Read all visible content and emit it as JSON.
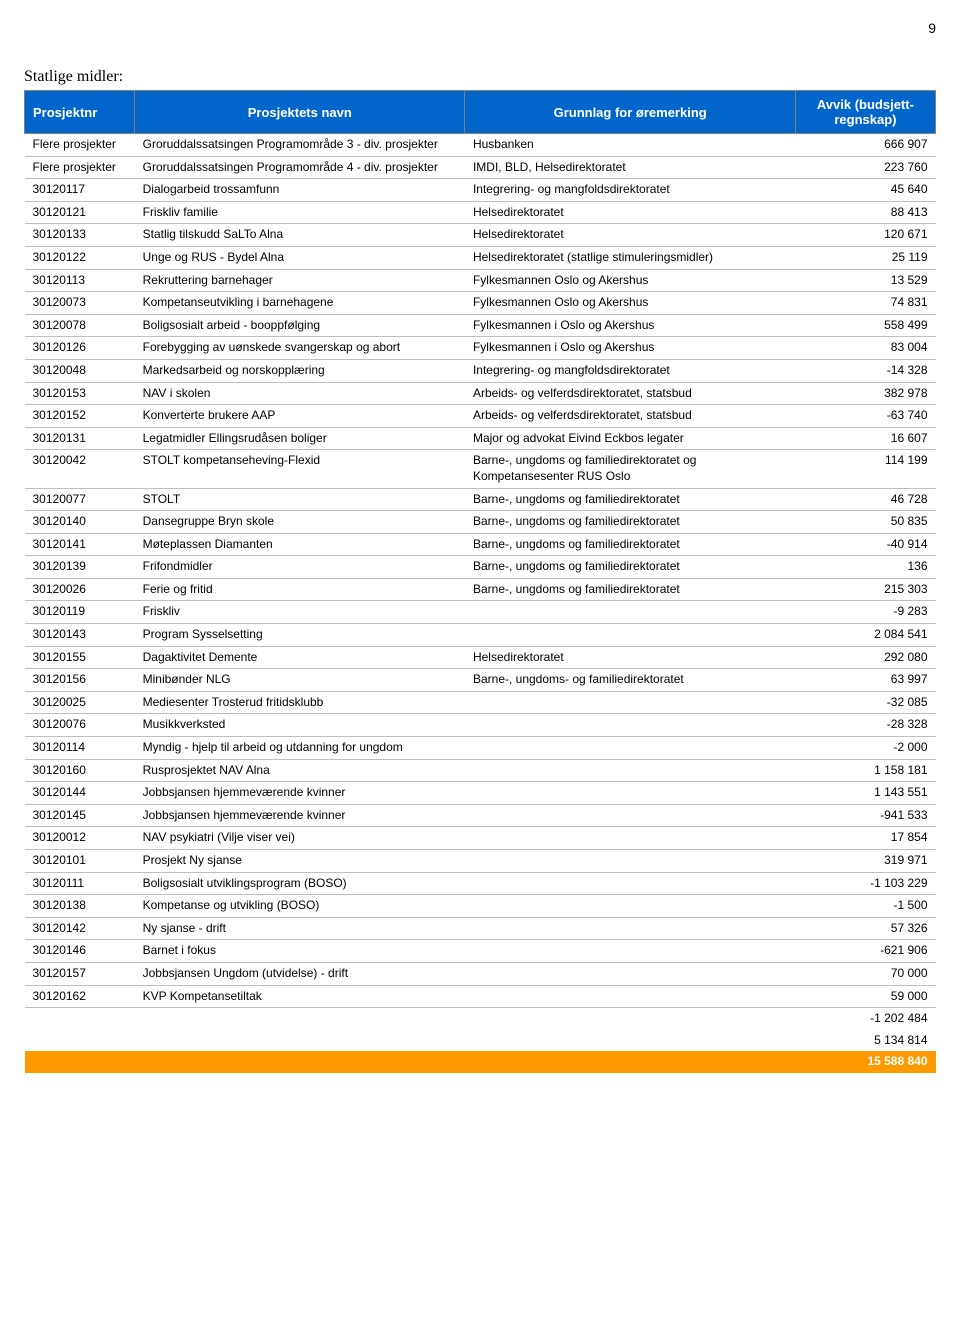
{
  "page_number": "9",
  "section_title": "Statlige midler:",
  "table": {
    "header": {
      "col_id": "Prosjektnr",
      "col_name": "Prosjektets navn",
      "col_basis": "Grunnlag for øremerking",
      "col_dev": "Avvik (budsjett-regnskap)"
    },
    "header_bg": "#0066cc",
    "header_fg": "#ffffff",
    "grand_total_bg": "#ff9900",
    "grand_total_fg": "#ffffff",
    "rows": [
      {
        "id": "Flere prosjekter",
        "name": "Groruddalssatsingen Programområde 3 - div. prosjekter",
        "basis": "Husbanken",
        "dev": "666 907"
      },
      {
        "id": "Flere prosjekter",
        "name": "Groruddalssatsingen Programområde 4 - div. prosjekter",
        "basis": "IMDI, BLD, Helsedirektoratet",
        "dev": "223 760"
      },
      {
        "id": "30120117",
        "name": "Dialogarbeid trossamfunn",
        "basis": "Integrering- og mangfoldsdirektoratet",
        "dev": "45 640"
      },
      {
        "id": "30120121",
        "name": "Friskliv familie",
        "basis": "Helsedirektoratet",
        "dev": "88 413"
      },
      {
        "id": "30120133",
        "name": "Statlig tilskudd SaLTo Alna",
        "basis": "Helsedirektoratet",
        "dev": "120 671"
      },
      {
        "id": "30120122",
        "name": "Unge og RUS - Bydel Alna",
        "basis": "Helsedirektoratet (statlige stimuleringsmidler)",
        "dev": "25 119"
      },
      {
        "id": "30120113",
        "name": "Rekruttering barnehager",
        "basis": "Fylkesmannen Oslo og Akershus",
        "dev": "13 529"
      },
      {
        "id": "30120073",
        "name": "Kompetanseutvikling i barnehagene",
        "basis": "Fylkesmannen Oslo og Akershus",
        "dev": "74 831"
      },
      {
        "id": "30120078",
        "name": "Boligsosialt arbeid - booppfølging",
        "basis": "Fylkesmannen i Oslo og Akershus",
        "dev": "558 499"
      },
      {
        "id": "30120126",
        "name": "Forebygging av uønskede svangerskap og abort",
        "basis": "Fylkesmannen i Oslo og Akershus",
        "dev": "83 004"
      },
      {
        "id": "30120048",
        "name": "Markedsarbeid og norskopplæring",
        "basis": "Integrering- og mangfoldsdirektoratet",
        "dev": "-14 328"
      },
      {
        "id": "30120153",
        "name": "NAV i skolen",
        "basis": "Arbeids- og velferdsdirektoratet, statsbud",
        "dev": "382 978"
      },
      {
        "id": "30120152",
        "name": "Konverterte brukere AAP",
        "basis": "Arbeids- og velferdsdirektoratet, statsbud",
        "dev": "-63 740"
      },
      {
        "id": "30120131",
        "name": "Legatmidler Ellingsrudåsen boliger",
        "basis": "Major og advokat Eivind Eckbos legater",
        "dev": "16 607"
      },
      {
        "id": "30120042",
        "name": "STOLT kompetanseheving-Flexid",
        "basis": "Barne-, ungdoms og familiedirektoratet og Kompetansesenter RUS Oslo",
        "dev": "114 199"
      },
      {
        "id": "30120077",
        "name": "STOLT",
        "basis": "Barne-, ungdoms og familiedirektoratet",
        "dev": "46 728"
      },
      {
        "id": "30120140",
        "name": "Dansegruppe Bryn skole",
        "basis": "Barne-, ungdoms og familiedirektoratet",
        "dev": "50 835"
      },
      {
        "id": "30120141",
        "name": "Møteplassen Diamanten",
        "basis": "Barne-, ungdoms og familiedirektoratet",
        "dev": "-40 914"
      },
      {
        "id": "30120139",
        "name": "Frifondmidler",
        "basis": "Barne-, ungdoms og familiedirektoratet",
        "dev": "136"
      },
      {
        "id": "30120026",
        "name": "Ferie og fritid",
        "basis": "Barne-, ungdoms og familiedirektoratet",
        "dev": "215 303"
      },
      {
        "id": "30120119",
        "name": "Friskliv",
        "basis": "",
        "dev": "-9 283"
      },
      {
        "id": "30120143",
        "name": "Program Sysselsetting",
        "basis": "",
        "dev": "2 084 541"
      },
      {
        "id": "30120155",
        "name": "Dagaktivitet Demente",
        "basis": "Helsedirektoratet",
        "dev": "292 080"
      },
      {
        "id": "30120156",
        "name": "Minibønder NLG",
        "basis": "Barne-, ungdoms- og familiedirektoratet",
        "dev": "63 997"
      },
      {
        "id": "30120025",
        "name": "Mediesenter Trosterud fritidsklubb",
        "basis": "",
        "dev": "-32 085"
      },
      {
        "id": "30120076",
        "name": "Musikkverksted",
        "basis": "",
        "dev": "-28 328"
      },
      {
        "id": "30120114",
        "name": "Myndig - hjelp til arbeid og utdanning for ungdom",
        "basis": "",
        "dev": "-2 000"
      },
      {
        "id": "30120160",
        "name": "Rusprosjektet NAV Alna",
        "basis": "",
        "dev": "1 158 181"
      },
      {
        "id": "30120144",
        "name": "Jobbsjansen hjemmeværende kvinner",
        "basis": "",
        "dev": "1 143 551"
      },
      {
        "id": "30120145",
        "name": "Jobbsjansen hjemmeværende kvinner",
        "basis": "",
        "dev": "-941 533"
      },
      {
        "id": "30120012",
        "name": "NAV psykiatri (Vilje viser vei)",
        "basis": "",
        "dev": "17 854"
      },
      {
        "id": "30120101",
        "name": "Prosjekt Ny sjanse",
        "basis": "",
        "dev": "319 971"
      },
      {
        "id": "30120111",
        "name": "Boligsosialt utviklingsprogram (BOSO)",
        "basis": "",
        "dev": "-1 103 229"
      },
      {
        "id": "30120138",
        "name": "Kompetanse og utvikling (BOSO)",
        "basis": "",
        "dev": "-1 500"
      },
      {
        "id": "30120142",
        "name": "Ny sjanse - drift",
        "basis": "",
        "dev": "57 326"
      },
      {
        "id": "30120146",
        "name": "Barnet i fokus",
        "basis": "",
        "dev": "-621 906"
      },
      {
        "id": "30120157",
        "name": "Jobbsjansen Ungdom (utvidelse) - drift",
        "basis": "",
        "dev": "70 000"
      },
      {
        "id": "30120162",
        "name": "KVP Kompetansetiltak",
        "basis": "",
        "dev": "59 000"
      }
    ],
    "subtotal_row": {
      "id": "",
      "name": "",
      "basis": "",
      "dev": "-1 202 484"
    },
    "total_row": {
      "id": "",
      "name": "",
      "basis": "",
      "dev": "5 134 814"
    },
    "grand_total_row": {
      "id": "",
      "name": "",
      "basis": "",
      "dev": "15 588 840"
    }
  }
}
